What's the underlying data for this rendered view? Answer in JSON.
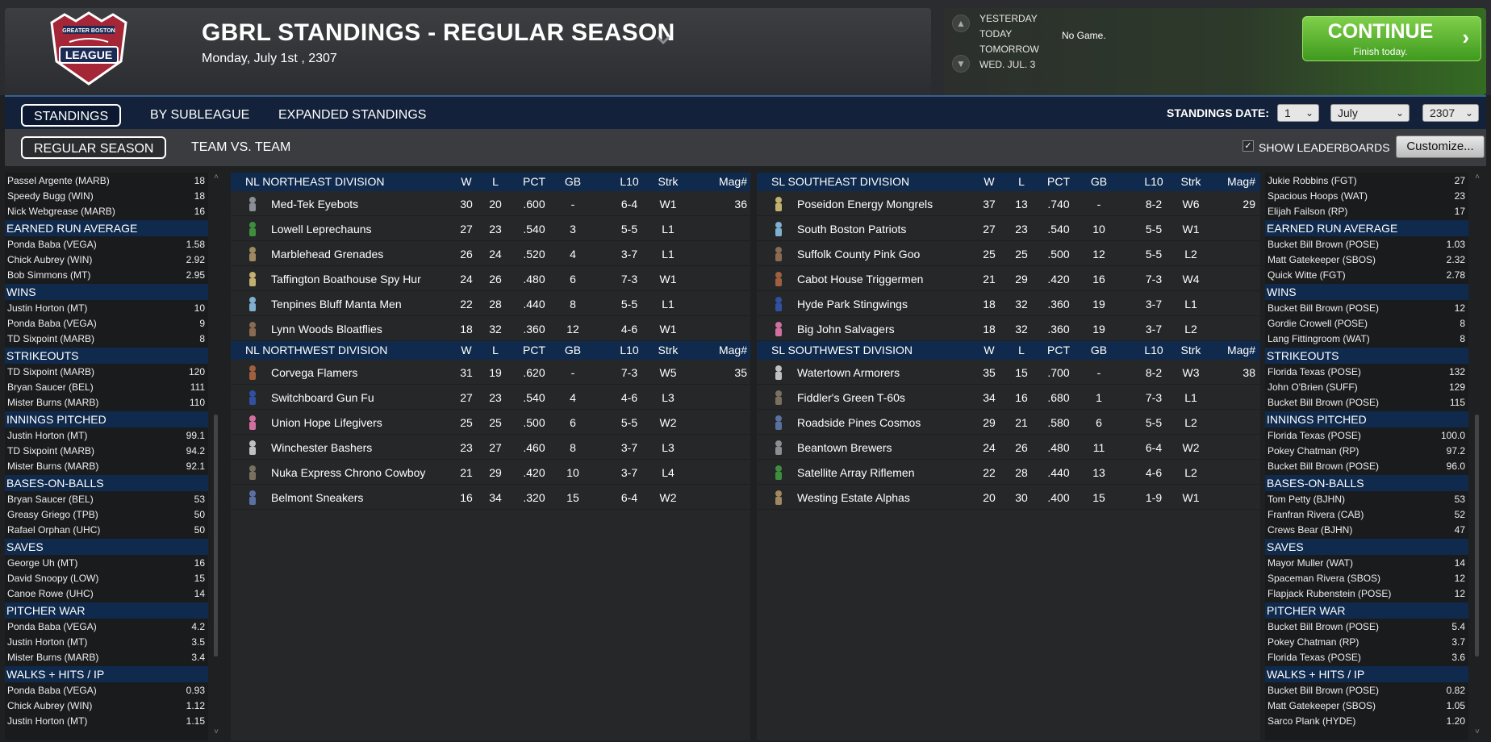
{
  "header": {
    "title": "GBRL STANDINGS - REGULAR SEASON",
    "date": "Monday, July 1st , 2307",
    "logo_text": [
      "GREATER BOSTON",
      "LEAGUE"
    ]
  },
  "game_nav": {
    "days": [
      "YESTERDAY",
      "TODAY",
      "TOMORROW",
      "WED. JUL. 3"
    ],
    "status": "No Game.",
    "continue_label": "CONTINUE",
    "continue_sub": "Finish today."
  },
  "tabs": [
    "STANDINGS",
    "BY SUBLEAGUE",
    "EXPANDED STANDINGS"
  ],
  "subtabs": [
    "REGULAR SEASON",
    "TEAM VS. TEAM"
  ],
  "standings_date": {
    "label": "STANDINGS DATE:",
    "day": "1",
    "month": "July",
    "year": "2307"
  },
  "show_leaderboards_label": "SHOW LEADERBOARDS",
  "customize_label": "Customize...",
  "columns": [
    "W",
    "L",
    "PCT",
    "GB",
    "L10",
    "Strk",
    "Mag#"
  ],
  "left_leaders": [
    {
      "title": "",
      "rows": [
        [
          "Passel Argente (MARB)",
          "18"
        ],
        [
          "Speedy Bugg (WIN)",
          "18"
        ],
        [
          "Nick Webgrease (MARB)",
          "16"
        ]
      ]
    },
    {
      "title": "EARNED RUN AVERAGE",
      "rows": [
        [
          "Ponda Baba (VEGA)",
          "1.58"
        ],
        [
          "Chick Aubrey (WIN)",
          "2.92"
        ],
        [
          "Bob Simmons (MT)",
          "2.95"
        ]
      ]
    },
    {
      "title": "WINS",
      "rows": [
        [
          "Justin Horton (MT)",
          "10"
        ],
        [
          "Ponda Baba (VEGA)",
          "9"
        ],
        [
          "TD Sixpoint (MARB)",
          "8"
        ]
      ]
    },
    {
      "title": "STRIKEOUTS",
      "rows": [
        [
          "TD Sixpoint (MARB)",
          "120"
        ],
        [
          "Bryan Saucer (BEL)",
          "111"
        ],
        [
          "Mister Burns (MARB)",
          "110"
        ]
      ]
    },
    {
      "title": "INNINGS PITCHED",
      "rows": [
        [
          "Justin Horton (MT)",
          "99.1"
        ],
        [
          "TD Sixpoint (MARB)",
          "94.2"
        ],
        [
          "Mister Burns (MARB)",
          "92.1"
        ]
      ]
    },
    {
      "title": "BASES-ON-BALLS",
      "rows": [
        [
          "Bryan Saucer (BEL)",
          "53"
        ],
        [
          "Greasy Griego (TPB)",
          "50"
        ],
        [
          "Rafael Orphan (UHC)",
          "50"
        ]
      ]
    },
    {
      "title": "SAVES",
      "rows": [
        [
          "George Uh (MT)",
          "16"
        ],
        [
          "David Snoopy (LOW)",
          "15"
        ],
        [
          "Canoe Rowe (UHC)",
          "14"
        ]
      ]
    },
    {
      "title": "PITCHER WAR",
      "rows": [
        [
          "Ponda Baba (VEGA)",
          "4.2"
        ],
        [
          "Justin Horton (MT)",
          "3.5"
        ],
        [
          "Mister Burns (MARB)",
          "3.4"
        ]
      ]
    },
    {
      "title": "WALKS + HITS / IP",
      "rows": [
        [
          "Ponda Baba (VEGA)",
          "0.93"
        ],
        [
          "Chick Aubrey (WIN)",
          "1.12"
        ],
        [
          "Justin Horton (MT)",
          "1.15"
        ]
      ]
    }
  ],
  "right_leaders": [
    {
      "title": "",
      "rows": [
        [
          "Jukie Robbins (FGT)",
          "27"
        ],
        [
          "Spacious Hoops (WAT)",
          "23"
        ],
        [
          "Elijah Failson (RP)",
          "17"
        ]
      ]
    },
    {
      "title": "EARNED RUN AVERAGE",
      "rows": [
        [
          "Bucket Bill Brown (POSE)",
          "1.03"
        ],
        [
          "Matt Gatekeeper (SBOS)",
          "2.32"
        ],
        [
          "Quick Witte (FGT)",
          "2.78"
        ]
      ]
    },
    {
      "title": "WINS",
      "rows": [
        [
          "Bucket Bill Brown (POSE)",
          "12"
        ],
        [
          "Gordie Crowell (POSE)",
          "8"
        ],
        [
          "Lang Fittingroom (WAT)",
          "8"
        ]
      ]
    },
    {
      "title": "STRIKEOUTS",
      "rows": [
        [
          "Florida Texas (POSE)",
          "132"
        ],
        [
          "John O'Brien (SUFF)",
          "129"
        ],
        [
          "Bucket Bill Brown (POSE)",
          "115"
        ]
      ]
    },
    {
      "title": "INNINGS PITCHED",
      "rows": [
        [
          "Florida Texas (POSE)",
          "100.0"
        ],
        [
          "Pokey Chatman (RP)",
          "97.2"
        ],
        [
          "Bucket Bill Brown (POSE)",
          "96.0"
        ]
      ]
    },
    {
      "title": "BASES-ON-BALLS",
      "rows": [
        [
          "Tom Petty (BJHN)",
          "53"
        ],
        [
          "Franfran Rivera (CAB)",
          "52"
        ],
        [
          "Crews Bear (BJHN)",
          "47"
        ]
      ]
    },
    {
      "title": "SAVES",
      "rows": [
        [
          "Mayor Muller (WAT)",
          "14"
        ],
        [
          "Spaceman Rivera (SBOS)",
          "12"
        ],
        [
          "Flapjack Rubenstein (POSE)",
          "12"
        ]
      ]
    },
    {
      "title": "PITCHER WAR",
      "rows": [
        [
          "Bucket Bill Brown (POSE)",
          "5.4"
        ],
        [
          "Pokey Chatman (RP)",
          "3.7"
        ],
        [
          "Florida Texas (POSE)",
          "3.6"
        ]
      ]
    },
    {
      "title": "WALKS + HITS / IP",
      "rows": [
        [
          "Bucket Bill Brown (POSE)",
          "0.82"
        ],
        [
          "Matt Gatekeeper (SBOS)",
          "1.05"
        ],
        [
          "Sarco Plank (HYDE)",
          "1.20"
        ]
      ]
    }
  ],
  "divisions_left": [
    {
      "name": "NL NORTHEAST DIVISION",
      "teams": [
        [
          "Med-Tek Eyebots",
          "30",
          "20",
          ".600",
          "-",
          "6-4",
          "W1",
          "36"
        ],
        [
          "Lowell Leprechauns",
          "27",
          "23",
          ".540",
          "3",
          "5-5",
          "L1",
          ""
        ],
        [
          "Marblehead Grenades",
          "26",
          "24",
          ".520",
          "4",
          "3-7",
          "L1",
          ""
        ],
        [
          "Taffington Boathouse Spy Hur",
          "24",
          "26",
          ".480",
          "6",
          "7-3",
          "W1",
          ""
        ],
        [
          "Tenpines Bluff Manta Men",
          "22",
          "28",
          ".440",
          "8",
          "5-5",
          "L1",
          ""
        ],
        [
          "Lynn Woods Bloatflies",
          "18",
          "32",
          ".360",
          "12",
          "4-6",
          "W1",
          ""
        ]
      ]
    },
    {
      "name": "NL NORTHWEST DIVISION",
      "teams": [
        [
          "Corvega Flamers",
          "31",
          "19",
          ".620",
          "-",
          "7-3",
          "W5",
          "35"
        ],
        [
          "Switchboard Gun Fu",
          "27",
          "23",
          ".540",
          "4",
          "4-6",
          "L3",
          ""
        ],
        [
          "Union Hope Lifegivers",
          "25",
          "25",
          ".500",
          "6",
          "5-5",
          "W2",
          ""
        ],
        [
          "Winchester Bashers",
          "23",
          "27",
          ".460",
          "8",
          "3-7",
          "L3",
          ""
        ],
        [
          "Nuka Express Chrono Cowboy",
          "21",
          "29",
          ".420",
          "10",
          "3-7",
          "L4",
          ""
        ],
        [
          "Belmont Sneakers",
          "16",
          "34",
          ".320",
          "15",
          "6-4",
          "W2",
          ""
        ]
      ]
    }
  ],
  "divisions_right": [
    {
      "name": "SL SOUTHEAST DIVISION",
      "teams": [
        [
          "Poseidon Energy Mongrels",
          "37",
          "13",
          ".740",
          "-",
          "8-2",
          "W6",
          "29"
        ],
        [
          "South Boston Patriots",
          "27",
          "23",
          ".540",
          "10",
          "5-5",
          "W1",
          ""
        ],
        [
          "Suffolk County Pink Goo",
          "25",
          "25",
          ".500",
          "12",
          "5-5",
          "L2",
          ""
        ],
        [
          "Cabot House Triggermen",
          "21",
          "29",
          ".420",
          "16",
          "7-3",
          "W4",
          ""
        ],
        [
          "Hyde Park Stingwings",
          "18",
          "32",
          ".360",
          "19",
          "3-7",
          "L1",
          ""
        ],
        [
          "Big John Salvagers",
          "18",
          "32",
          ".360",
          "19",
          "3-7",
          "L2",
          ""
        ]
      ]
    },
    {
      "name": "SL SOUTHWEST DIVISION",
      "teams": [
        [
          "Watertown Armorers",
          "35",
          "15",
          ".700",
          "-",
          "8-2",
          "W3",
          "38"
        ],
        [
          "Fiddler's Green T-60s",
          "34",
          "16",
          ".680",
          "1",
          "7-3",
          "L1",
          ""
        ],
        [
          "Roadside Pines Cosmos",
          "29",
          "21",
          ".580",
          "6",
          "5-5",
          "L2",
          ""
        ],
        [
          "Beantown Brewers",
          "24",
          "26",
          ".480",
          "11",
          "6-4",
          "W2",
          ""
        ],
        [
          "Satellite Array Riflemen",
          "22",
          "28",
          ".440",
          "13",
          "4-6",
          "L2",
          ""
        ],
        [
          "Westing Estate Alphas",
          "20",
          "30",
          ".400",
          "15",
          "1-9",
          "W1",
          ""
        ]
      ]
    }
  ],
  "colors": {
    "division_header": "#0f2a4d",
    "continue_green": "#3f9a1e",
    "tab_bar": "#13223a"
  }
}
